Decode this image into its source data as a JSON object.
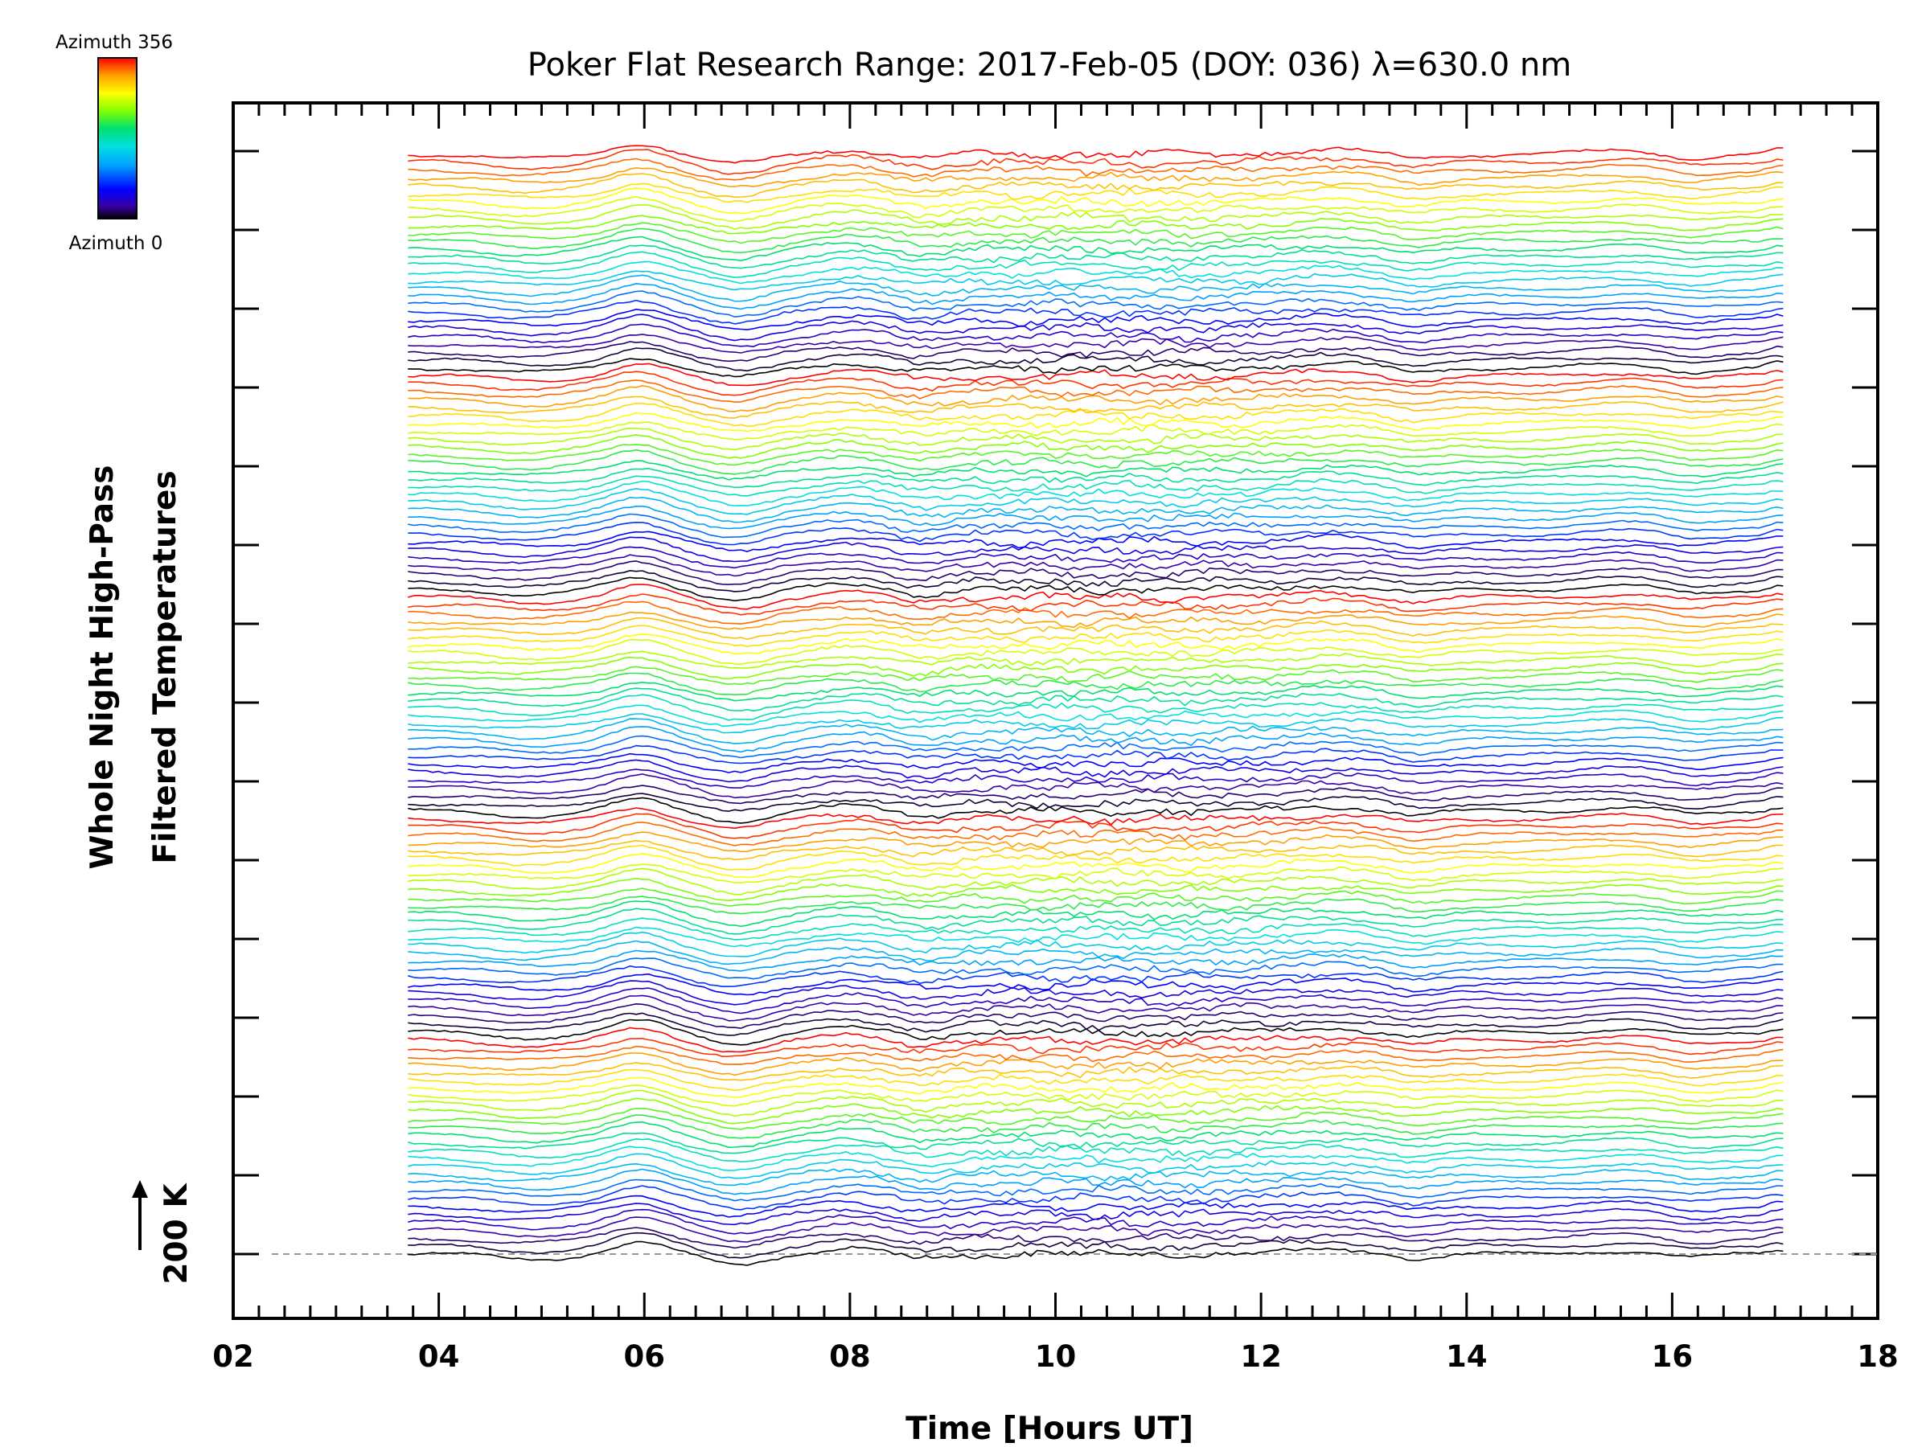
{
  "chart_data": {
    "type": "line",
    "title": "Poker Flat Research Range: 2017-Feb-05 (DOY: 036) λ=630.0 nm",
    "xlabel": "Time [Hours UT]",
    "ylabel_line1": "Whole Night High-Pass",
    "ylabel_line2": "Filtered Temperatures",
    "scale_label": "200 K",
    "xlim": [
      2,
      18
    ],
    "x_ticks": [
      "02",
      "04",
      "06",
      "08",
      "10",
      "12",
      "14",
      "16",
      "18"
    ],
    "x_range_data": [
      3.7,
      17.1
    ],
    "series_count": 140,
    "azimuth_cycle_length": 28,
    "colorbar": {
      "top_label": "Azimuth 356",
      "bottom_label": "Azimuth 0",
      "range": [
        0,
        356
      ],
      "colormap": [
        "#000000",
        "#3a00a8",
        "#0000ff",
        "#00a0ff",
        "#00e0e0",
        "#00e070",
        "#80ff00",
        "#ffff00",
        "#ffa000",
        "#ff0000"
      ]
    },
    "colors": {
      "frame": "#000000",
      "baseline": "#999999"
    }
  }
}
